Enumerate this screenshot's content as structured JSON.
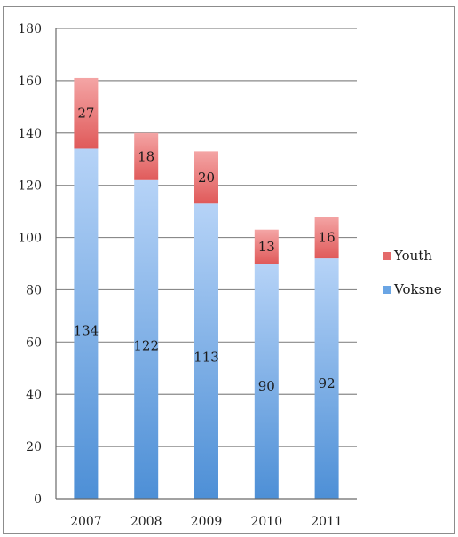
{
  "chart_data": {
    "type": "bar",
    "stacked": true,
    "categories": [
      "2007",
      "2008",
      "2009",
      "2010",
      "2011"
    ],
    "series": [
      {
        "name": "Voksne",
        "values": [
          134,
          122,
          113,
          90,
          92
        ],
        "color": "#6aa5e4"
      },
      {
        "name": "Youth",
        "values": [
          27,
          18,
          20,
          13,
          16
        ],
        "color": "#e46a6a"
      }
    ],
    "ylim": [
      0,
      180
    ],
    "yticks": [
      "0",
      "20",
      "40",
      "60",
      "80",
      "100",
      "120",
      "140",
      "160",
      "180"
    ],
    "grid": true,
    "legend_position": "right"
  }
}
